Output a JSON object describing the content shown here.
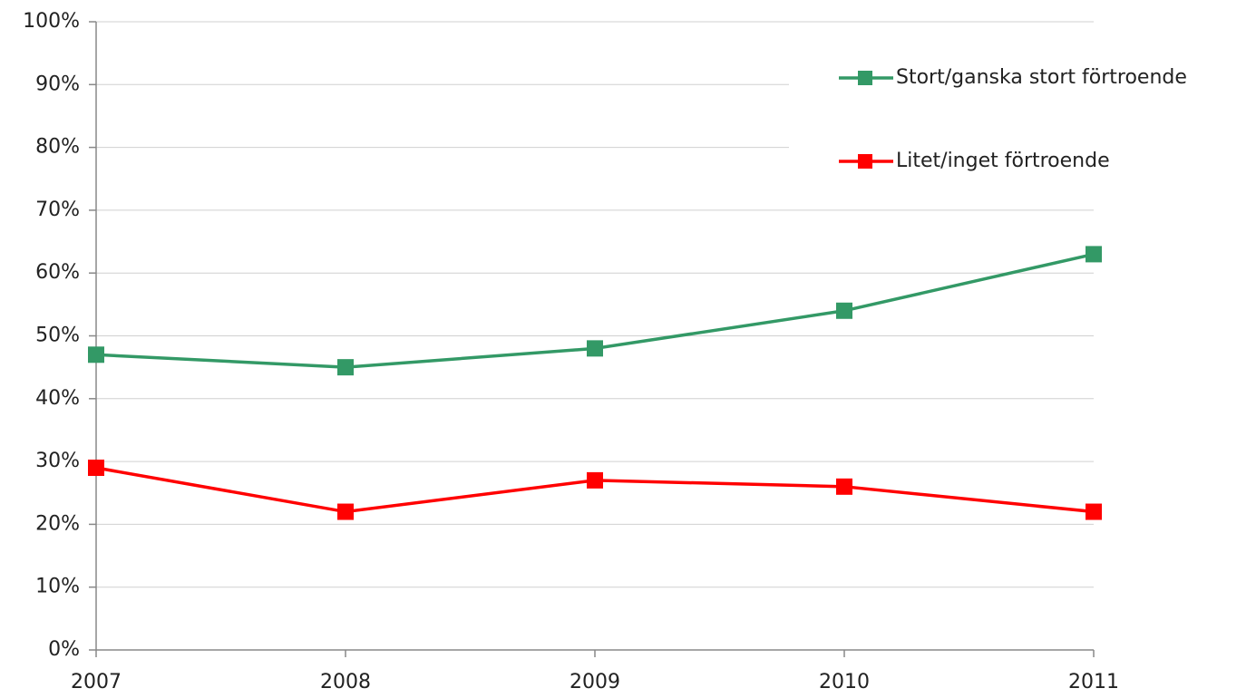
{
  "chart_data": {
    "type": "line",
    "categories": [
      "2007",
      "2008",
      "2009",
      "2010",
      "2011"
    ],
    "series": [
      {
        "name": "Stort/ganska stort förtroende",
        "color": "#339966",
        "values": [
          47,
          45,
          48,
          54,
          63
        ]
      },
      {
        "name": "Litet/inget förtroende",
        "color": "#ff0000",
        "values": [
          29,
          22,
          27,
          26,
          22
        ]
      }
    ],
    "ylim": [
      0,
      100
    ],
    "yticks": [
      {
        "value": 0,
        "label": "0%"
      },
      {
        "value": 10,
        "label": "10%"
      },
      {
        "value": 20,
        "label": "20%"
      },
      {
        "value": 30,
        "label": "30%"
      },
      {
        "value": 40,
        "label": "40%"
      },
      {
        "value": 50,
        "label": "50%"
      },
      {
        "value": 60,
        "label": "60%"
      },
      {
        "value": 70,
        "label": "70%"
      },
      {
        "value": 80,
        "label": "80%"
      },
      {
        "value": 90,
        "label": "90%"
      },
      {
        "value": 100,
        "label": "100%"
      }
    ],
    "grid": true,
    "legend": "upper right"
  }
}
